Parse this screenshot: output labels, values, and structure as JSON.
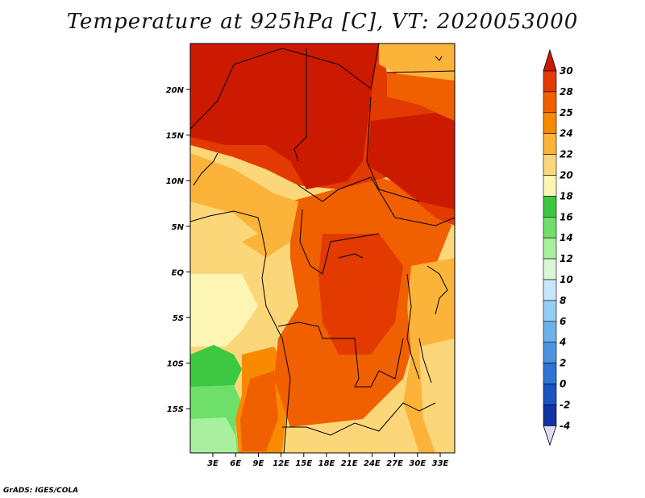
{
  "title": "Temperature at 925hPa [C], VT: 2020053000",
  "credit": "GrADS: IGES/COLA",
  "map": {
    "lon_ticks": [
      "3E",
      "6E",
      "9E",
      "12E",
      "15E",
      "18E",
      "21E",
      "24E",
      "27E",
      "30E",
      "33E"
    ],
    "lat_ticks": [
      "20N",
      "15N",
      "10N",
      "5N",
      "EQ",
      "5S",
      "10S",
      "15S"
    ]
  },
  "colorbar": {
    "levels": [
      "30",
      "28",
      "25",
      "24",
      "22",
      "20",
      "18",
      "16",
      "14",
      "12",
      "10",
      "8",
      "6",
      "4",
      "2",
      "0",
      "-2",
      "-4"
    ],
    "colors": {
      "above_30": "#cc1a00",
      "c28_30": "#e23a00",
      "c25_28": "#f06000",
      "c24_25": "#f98a00",
      "c22_24": "#fbb33a",
      "c20_22": "#fcd77a",
      "c18_20": "#fdf5b4",
      "c16_18": "#3cc840",
      "c14_16": "#6ee069",
      "c12_14": "#a8f09e",
      "c10_12": "#d9f7d6",
      "c8_10": "#c6e6fb",
      "c6_8": "#96cdf4",
      "c4_6": "#6eb1ea",
      "c2_4": "#4c94e0",
      "c0_2": "#2f74d4",
      "cm2_0": "#1a54c2",
      "cm4_m2": "#0f35a6",
      "below_m4": "#0a1a6e",
      "below_tip": "#e0dcf6"
    }
  }
}
